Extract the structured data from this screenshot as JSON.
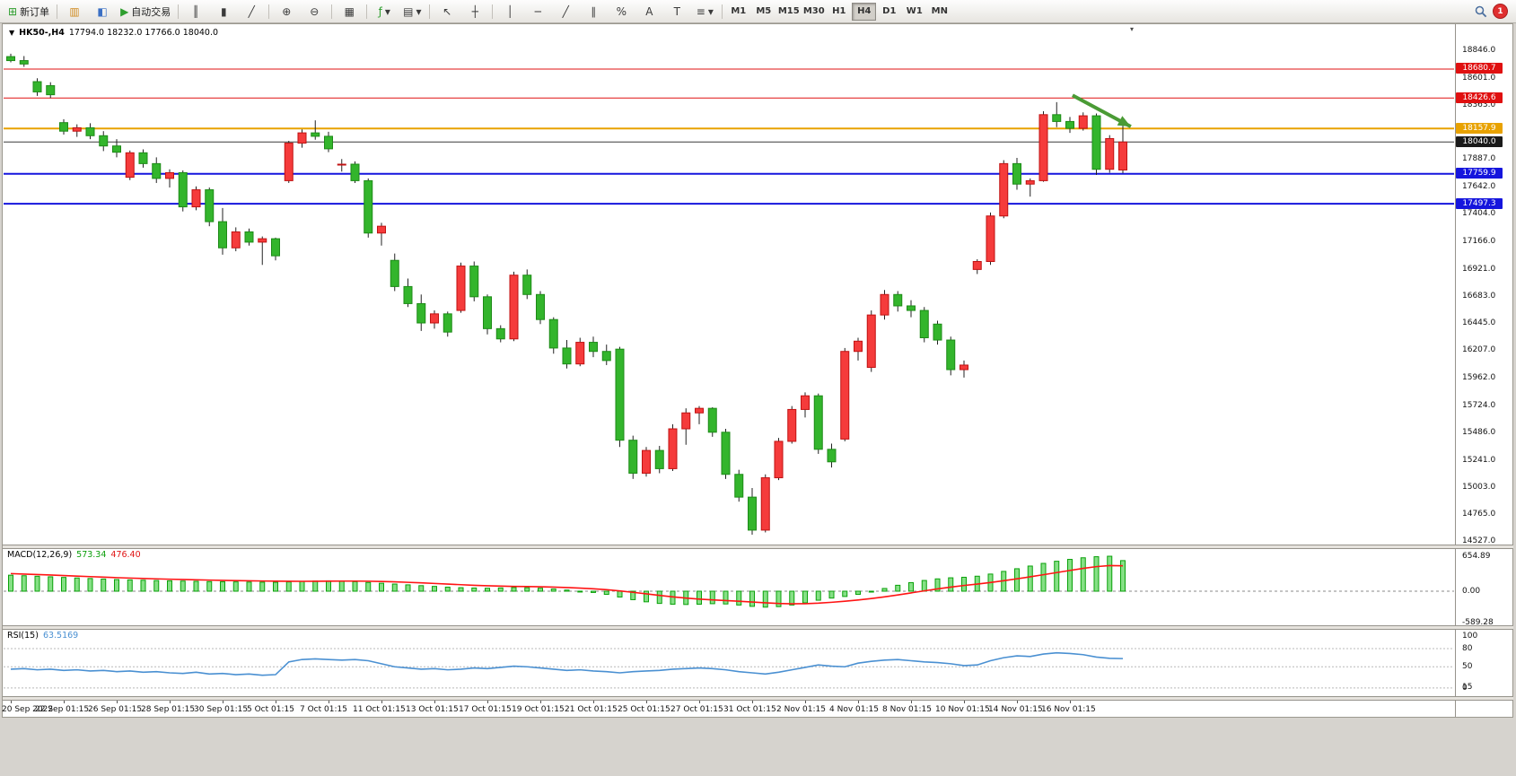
{
  "toolbar": {
    "new_order": {
      "label": "新订单"
    },
    "autotrading": {
      "label": "自动交易"
    },
    "notification_badge": "1",
    "active_timeframe": "H4",
    "timeframes": [
      "M1",
      "M5",
      "M15",
      "M30",
      "H1",
      "H4",
      "D1",
      "W1",
      "MN"
    ],
    "icons": {
      "new_order": "⊞",
      "market_watch": "▥",
      "data_window": "◧",
      "autotrading": "▶",
      "bar_chart": "║",
      "candle_chart": "▮",
      "line_chart": "╱",
      "zoom_in": "⊕",
      "zoom_out": "⊖",
      "tile_windows": "▦",
      "indicators": "ƒ",
      "dropdown": "▾",
      "templates": "▤",
      "cursor": "↖",
      "crosshair": "┼",
      "vertical_line": "│",
      "horizontal_line": "─",
      "trendline": "╱",
      "channel": "∥",
      "fibonacci": "%",
      "text": "A",
      "label": "T",
      "arrows": "≡",
      "shift_marker": "▾"
    }
  },
  "chart": {
    "symbol_period": "HK50-,H4",
    "ohlc_text": "17794.0 18232.0 17766.0 18040.0"
  },
  "indicators": {
    "macd": {
      "name": "MACD(12,26,9)",
      "main_value": "573.34",
      "signal_value": "476.40"
    },
    "rsi": {
      "name": "RSI(15)",
      "value": "63.5169"
    }
  },
  "chart_data": {
    "type": "candlestick",
    "symbol": "HK50-",
    "timeframe": "H4",
    "colors": {
      "bull": "#f53b3b",
      "bull_stroke": "#c01212",
      "bear": "#33b52c",
      "bear_stroke": "#1d8a17",
      "wick": "#222222",
      "macd_hist": "#86e086",
      "macd_hist_stroke": "#0aa10a",
      "macd_signal": "#ff1414",
      "rsi_line": "#4a90d2",
      "level_red": "#e01010",
      "level_orange": "#e8a200",
      "level_blue": "#1515dd",
      "current_price": "#1a1a1a"
    },
    "price_ticks": [
      18846.0,
      18601.0,
      18363.0,
      18123.0,
      17887.0,
      17642.0,
      17404.0,
      17166.0,
      16921.0,
      16683.0,
      16445.0,
      16207.0,
      15962.0,
      15724.0,
      15486.0,
      15241.0,
      15003.0,
      14765.0,
      14527.0
    ],
    "levels": [
      {
        "price": 18680.7,
        "color": "#e01010",
        "width": 1
      },
      {
        "price": 18426.6,
        "color": "#e01010",
        "width": 1
      },
      {
        "price": 18157.9,
        "color": "#e8a200",
        "width": 2
      },
      {
        "price": 18040.0,
        "color": "#3a3a3a",
        "width": 1,
        "badge": "#1a1a1a"
      },
      {
        "price": 17759.9,
        "color": "#1515dd",
        "width": 2
      },
      {
        "price": 17497.3,
        "color": "#1515dd",
        "width": 2
      }
    ],
    "candles": [
      [
        18790,
        18815,
        18740,
        18755
      ],
      [
        18755,
        18795,
        18700,
        18725
      ],
      [
        18570,
        18600,
        18445,
        18480
      ],
      [
        18535,
        18565,
        18425,
        18455
      ],
      [
        18210,
        18240,
        18105,
        18135
      ],
      [
        18135,
        18195,
        18085,
        18165
      ],
      [
        18165,
        18205,
        18065,
        18095
      ],
      [
        18095,
        18135,
        17960,
        18005
      ],
      [
        18005,
        18065,
        17905,
        17950
      ],
      [
        17730,
        17965,
        17705,
        17945
      ],
      [
        17945,
        17975,
        17815,
        17850
      ],
      [
        17850,
        17905,
        17680,
        17720
      ],
      [
        17720,
        17800,
        17640,
        17770
      ],
      [
        17770,
        17790,
        17430,
        17470
      ],
      [
        17470,
        17650,
        17440,
        17620
      ],
      [
        17620,
        17640,
        17300,
        17340
      ],
      [
        17340,
        17460,
        17050,
        17110
      ],
      [
        17110,
        17290,
        17080,
        17250
      ],
      [
        17250,
        17280,
        17130,
        17160
      ],
      [
        17160,
        17210,
        16960,
        17190
      ],
      [
        17190,
        17200,
        17000,
        17040
      ],
      [
        17700,
        18050,
        17680,
        18030
      ],
      [
        18030,
        18150,
        17990,
        18120
      ],
      [
        18120,
        18230,
        18060,
        18090
      ],
      [
        18090,
        18130,
        17950,
        17980
      ],
      [
        17840,
        17890,
        17780,
        17845
      ],
      [
        17845,
        17870,
        17680,
        17700
      ],
      [
        17700,
        17720,
        17200,
        17240
      ],
      [
        17240,
        17330,
        17130,
        17300
      ],
      [
        17000,
        17060,
        16730,
        16770
      ],
      [
        16770,
        16840,
        16590,
        16620
      ],
      [
        16620,
        16700,
        16380,
        16450
      ],
      [
        16450,
        16560,
        16400,
        16530
      ],
      [
        16530,
        16550,
        16330,
        16370
      ],
      [
        16560,
        16980,
        16540,
        16950
      ],
      [
        16950,
        16990,
        16640,
        16680
      ],
      [
        16680,
        16700,
        16350,
        16400
      ],
      [
        16400,
        16430,
        16280,
        16310
      ],
      [
        16310,
        16900,
        16290,
        16870
      ],
      [
        16870,
        16920,
        16660,
        16700
      ],
      [
        16700,
        16730,
        16440,
        16480
      ],
      [
        16480,
        16500,
        16180,
        16230
      ],
      [
        16230,
        16300,
        16050,
        16090
      ],
      [
        16090,
        16320,
        16070,
        16280
      ],
      [
        16280,
        16330,
        16150,
        16200
      ],
      [
        16200,
        16260,
        16080,
        16120
      ],
      [
        16220,
        16240,
        15360,
        15420
      ],
      [
        15420,
        15460,
        15080,
        15130
      ],
      [
        15130,
        15360,
        15100,
        15330
      ],
      [
        15330,
        15370,
        15130,
        15170
      ],
      [
        15170,
        15560,
        15150,
        15520
      ],
      [
        15520,
        15700,
        15380,
        15660
      ],
      [
        15660,
        15720,
        15560,
        15700
      ],
      [
        15700,
        15710,
        15450,
        15490
      ],
      [
        15490,
        15520,
        15080,
        15120
      ],
      [
        15120,
        15160,
        14880,
        14920
      ],
      [
        14920,
        15000,
        14590,
        14630
      ],
      [
        14630,
        15120,
        14610,
        15090
      ],
      [
        15090,
        15440,
        15070,
        15410
      ],
      [
        15410,
        15720,
        15390,
        15690
      ],
      [
        15690,
        15840,
        15620,
        15810
      ],
      [
        15810,
        15830,
        15300,
        15340
      ],
      [
        15340,
        15390,
        15180,
        15230
      ],
      [
        15430,
        16230,
        15410,
        16200
      ],
      [
        16200,
        16320,
        16120,
        16290
      ],
      [
        16060,
        16560,
        16020,
        16520
      ],
      [
        16520,
        16740,
        16480,
        16700
      ],
      [
        16700,
        16730,
        16550,
        16600
      ],
      [
        16600,
        16650,
        16500,
        16560
      ],
      [
        16560,
        16590,
        16280,
        16320
      ],
      [
        16440,
        16470,
        16260,
        16300
      ],
      [
        16300,
        16330,
        15990,
        16040
      ],
      [
        16040,
        16120,
        15970,
        16080
      ],
      [
        16920,
        17010,
        16880,
        16990
      ],
      [
        16990,
        17420,
        16960,
        17390
      ],
      [
        17390,
        17880,
        17370,
        17850
      ],
      [
        17850,
        17900,
        17620,
        17670
      ],
      [
        17670,
        17720,
        17560,
        17700
      ],
      [
        17700,
        18310,
        17690,
        18280
      ],
      [
        18280,
        18390,
        18170,
        18220
      ],
      [
        18220,
        18260,
        18120,
        18160
      ],
      [
        18160,
        18300,
        18140,
        18270
      ],
      [
        18270,
        18290,
        17750,
        17800
      ],
      [
        17800,
        18100,
        17770,
        18070
      ],
      [
        17794,
        18232,
        17766,
        18040
      ]
    ],
    "macd": {
      "histogram": [
        300,
        290,
        280,
        270,
        258,
        248,
        238,
        228,
        218,
        212,
        206,
        200,
        195,
        190,
        185,
        180,
        177,
        174,
        171,
        169,
        167,
        174,
        184,
        191,
        194,
        189,
        179,
        164,
        149,
        134,
        119,
        104,
        90,
        76,
        66,
        60,
        56,
        61,
        70,
        66,
        56,
        41,
        21,
        1,
        -24,
        -59,
        -109,
        -159,
        -199,
        -229,
        -244,
        -249,
        -244,
        -234,
        -239,
        -259,
        -284,
        -299,
        -289,
        -259,
        -219,
        -169,
        -129,
        -99,
        -59,
        -9,
        51,
        111,
        161,
        201,
        231,
        251,
        261,
        281,
        321,
        371,
        421,
        471,
        521,
        561,
        596,
        626,
        646,
        654.89,
        573.34
      ],
      "signal": [
        330,
        321,
        312,
        303,
        293,
        283,
        273,
        263,
        254,
        246,
        238,
        231,
        225,
        219,
        213,
        208,
        203,
        199,
        195,
        191,
        188,
        186,
        185,
        186,
        188,
        189,
        189,
        187,
        182,
        175,
        166,
        156,
        145,
        133,
        122,
        111,
        102,
        95,
        90,
        87,
        83,
        77,
        69,
        58,
        45,
        28,
        6,
        -21,
        -50,
        -79,
        -106,
        -129,
        -148,
        -163,
        -175,
        -188,
        -203,
        -218,
        -230,
        -236,
        -234,
        -224,
        -208,
        -188,
        -165,
        -138,
        -106,
        -70,
        -32,
        6,
        43,
        77,
        107,
        134,
        163,
        196,
        232,
        270,
        309,
        349,
        389,
        427,
        460,
        480,
        476.4
      ],
      "axis_ticks": [
        654.89,
        0,
        -589.28
      ]
    },
    "rsi": {
      "values": [
        46,
        47,
        45,
        46,
        44,
        45,
        43,
        44,
        42,
        43,
        41,
        42,
        40,
        39,
        41,
        38,
        39,
        37,
        38,
        36,
        37,
        58,
        62,
        63,
        62,
        61,
        62,
        60,
        55,
        50,
        48,
        46,
        47,
        45,
        46,
        48,
        47,
        49,
        51,
        50,
        48,
        46,
        44,
        45,
        43,
        42,
        40,
        42,
        43,
        44,
        46,
        47,
        48,
        47,
        45,
        42,
        40,
        38,
        41,
        45,
        49,
        53,
        51,
        50,
        56,
        59,
        61,
        62,
        60,
        58,
        57,
        55,
        52,
        53,
        60,
        65,
        68,
        67,
        71,
        73,
        72,
        70,
        66,
        64,
        63.52
      ],
      "axis_ticks": [
        100,
        80,
        50,
        15,
        0
      ],
      "level_lines": [
        80,
        50,
        15
      ]
    },
    "x_labels": [
      "20 Sep 2022",
      "22 Sep 01:15",
      "26 Sep 01:15",
      "28 Sep 01:15",
      "30 Sep 01:15",
      "5 Oct 01:15",
      "7 Oct 01:15",
      "11 Oct 01:15",
      "13 Oct 01:15",
      "17 Oct 01:15",
      "19 Oct 01:15",
      "21 Oct 01:15",
      "25 Oct 01:15",
      "27 Oct 01:15",
      "31 Oct 01:15",
      "2 Nov 01:15",
      "4 Nov 01:15",
      "8 Nov 01:15",
      "10 Nov 01:15",
      "14 Nov 01:15",
      "16 Nov 01:15"
    ],
    "label_every_n_bars": 4,
    "annotation_arrow": {
      "bar_from": 80.2,
      "price_from": 18450,
      "bar_to": 84.6,
      "price_to": 18175,
      "color": "#4a9b35"
    }
  }
}
